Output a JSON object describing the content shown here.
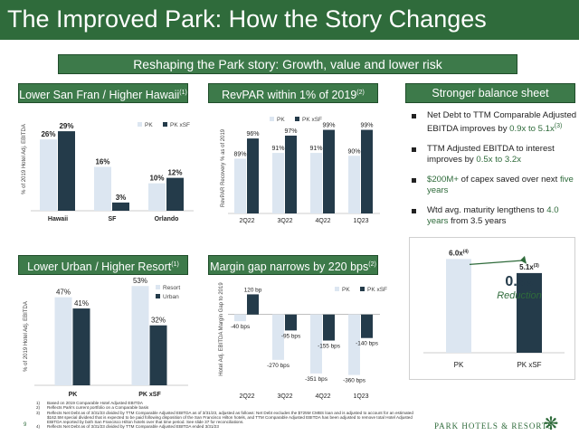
{
  "title": "The Improved Park: How the Story Changes",
  "banner": "Reshaping the Park story: Growth, value and lower risk",
  "colors": {
    "green": "#3d7a4a",
    "dark": "#243b4a",
    "light": "#dce6f1",
    "accent": "#2f6b3b"
  },
  "panels": {
    "p1": {
      "title": "Lower San Fran / Higher Hawaii",
      "sup": "(1)"
    },
    "p2": {
      "title": "RevPAR within 1% of 2019",
      "sup": "(2)"
    },
    "p3": {
      "title": "Stronger balance sheet"
    },
    "p4": {
      "title": "Lower Urban / Higher Resort",
      "sup": "(1)"
    },
    "p5": {
      "title": "Margin gap narrows by 220 bps",
      "sup": "(2)"
    }
  },
  "bullets": [
    {
      "pre": "Net Debt to TTM Comparable Adjusted EBITDA improves by ",
      "hl": "0.9x to 5.1x",
      "sup": "(3)",
      "post": ""
    },
    {
      "pre": "TTM Adjusted EBITDA to interest improves by ",
      "hl": "0.5x to 3.2x",
      "sup": "",
      "post": ""
    },
    {
      "pre": "",
      "hl": "$200M+",
      "sup": "",
      "post": " of capex saved over next ",
      "hl2": "five years"
    },
    {
      "pre": "Wtd avg. maturity lengthens to ",
      "hl": "4.0 years",
      "sup": "",
      "post": " from 3.5 years"
    }
  ],
  "chart_data": [
    {
      "type": "bar",
      "ylabel": "% of 2019 Hotel Adj. EBITDA",
      "categories": [
        "Hawaii",
        "SF",
        "Orlando"
      ],
      "series": [
        {
          "name": "PK",
          "values": [
            26,
            16,
            10
          ]
        },
        {
          "name": "PK xSF",
          "values": [
            29,
            3,
            12
          ]
        }
      ],
      "labels": [
        [
          "26%",
          "16%",
          "10%"
        ],
        [
          "29%",
          "3%",
          "12%"
        ]
      ],
      "ylim": [
        0,
        32
      ]
    },
    {
      "type": "bar",
      "ylabel": "RevPAR Recovery % as of 2019",
      "categories": [
        "2Q22",
        "3Q22",
        "4Q22",
        "1Q23"
      ],
      "series": [
        {
          "name": "PK",
          "values": [
            89,
            91,
            91,
            90
          ]
        },
        {
          "name": "PK xSF",
          "values": [
            96,
            97,
            99,
            99
          ]
        }
      ],
      "labels": [
        [
          "89%",
          "91%",
          "91%",
          "90%"
        ],
        [
          "96%",
          "97%",
          "99%",
          "99%"
        ]
      ],
      "ylim": [
        70,
        102
      ]
    },
    {
      "type": "bar",
      "categories": [
        "PK",
        "PK xSF"
      ],
      "values": [
        6.0,
        5.1
      ],
      "labels": [
        "6.0x",
        "5.1x"
      ],
      "sups": [
        "(4)",
        "(3)"
      ],
      "annotation": {
        "value": "0.9x",
        "text": "Reduction"
      },
      "ylim": [
        0,
        6.6
      ]
    },
    {
      "type": "bar",
      "ylabel": "% of 2019 Hotel Adj. EBITDA",
      "categories": [
        "PK",
        "PK xSF"
      ],
      "series": [
        {
          "name": "Resort",
          "values": [
            47,
            53
          ]
        },
        {
          "name": "Urban",
          "values": [
            41,
            32
          ]
        }
      ],
      "labels": [
        [
          "47%",
          "53%"
        ],
        [
          "41%",
          "32%"
        ]
      ],
      "ylim": [
        0,
        56
      ]
    },
    {
      "type": "bar",
      "ylabel": "Hotel Adj. EBITDA Margin Gap to 2019",
      "categories": [
        "2Q22",
        "3Q22",
        "4Q22",
        "1Q23"
      ],
      "series": [
        {
          "name": "PK",
          "values": [
            -40,
            -270,
            -351,
            -360
          ]
        },
        {
          "name": "PK xSF",
          "values": [
            120,
            -95,
            -155,
            -140
          ]
        }
      ],
      "labels": [
        [
          "-40 bps",
          "-270 bps",
          "-351 bps",
          "-360 bps"
        ],
        [
          "120 bp",
          "-95 bps",
          "-155 bps",
          "-140 bps"
        ]
      ],
      "ylim": [
        -400,
        160
      ]
    }
  ],
  "footnotes": [
    {
      "n": "1)",
      "text": "Based on 2019 Comparable Hotel Adjusted EBITDA"
    },
    {
      "n": "2)",
      "text": "Reflects Park's current portfolio on a Comparable basis"
    },
    {
      "n": "3)",
      "text": "Reflects Net Debt as of 3/31/23 divided by TTM Comparable Adjusted EBITDA as of 3/31/23, adjusted as follows: Net Debt excludes the $725M CMBS loan and is adjusted to account for an estimated $162.5M special dividend that is expected to be paid following disposition of the San Francisco Hilton hotels, and TTM Comparable Adjusted EBITDA has been adjusted to remove total Hotel Adjusted EBITDA reported by both San Francisco Hilton hotels over that time period. See slide 37 for reconciliations."
    },
    {
      "n": "4)",
      "text": "Reflects Net Debt as of 3/31/23 divided by TTM Comparable Adjusted EBITDA ended 3/31/23"
    }
  ],
  "page_number": "9",
  "brand": "PARK HOTELS & RESORTS",
  "icons": {
    "brand": "snowflake-logo-icon",
    "bullet": "square-bullet-icon"
  }
}
